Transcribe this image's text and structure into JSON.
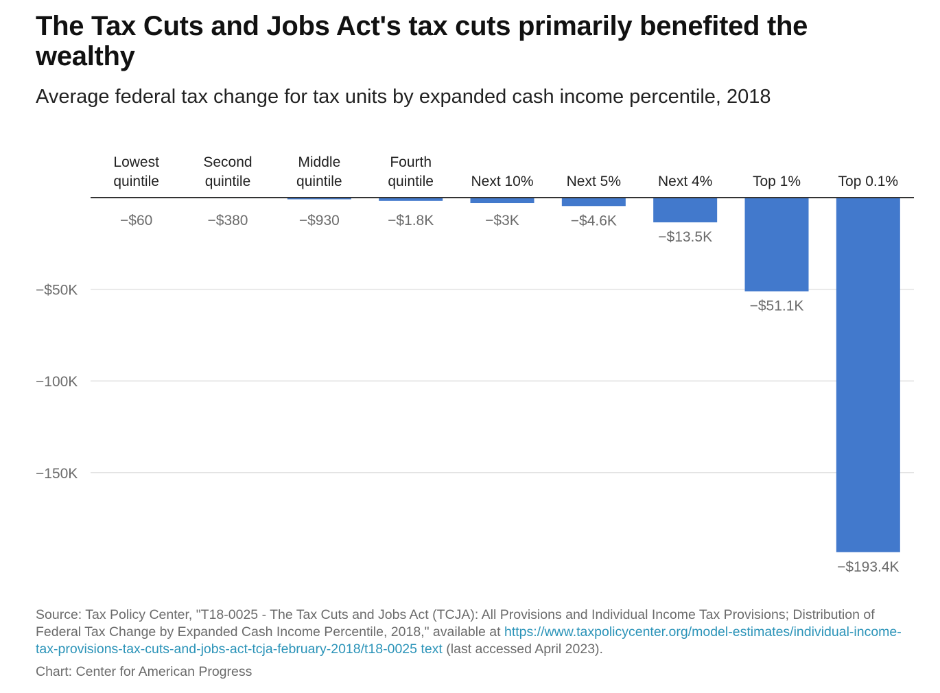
{
  "title": "The Tax Cuts and Jobs Act's tax cuts primarily benefited the wealthy",
  "subtitle": "Average federal tax change for tax units by expanded cash income percentile, 2018",
  "source": {
    "prefix": "Source: Tax Policy Center, \"T18-0025 - The Tax Cuts and Jobs Act (TCJA): All Provisions and Individual Income Tax Provisions; Distribution of Federal Tax Change by Expanded Cash Income Percentile, 2018,\" available at ",
    "link": "https://www.taxpolicycenter.org/model-estimates/individual-income-tax-provisions-tax-cuts-and-jobs-act-tcja-february-2018/t18-0025 text",
    "suffix": " (last accessed April 2023)."
  },
  "credit": "Chart: Center for American Progress",
  "colors": {
    "bar": "#4279cc",
    "grid": "#e2e2e2",
    "axis": "#333333"
  },
  "chart_data": {
    "type": "bar",
    "title": "The Tax Cuts and Jobs Act's tax cuts primarily benefited the wealthy",
    "subtitle": "Average federal tax change for tax units by expanded cash income percentile, 2018",
    "xlabel": "",
    "ylabel": "",
    "categories": [
      [
        "Lowest",
        "quintile"
      ],
      [
        "Second",
        "quintile"
      ],
      [
        "Middle",
        "quintile"
      ],
      [
        "Fourth",
        "quintile"
      ],
      [
        "Next 10%"
      ],
      [
        "Next 5%"
      ],
      [
        "Next 4%"
      ],
      [
        "Top 1%"
      ],
      [
        "Top 0.1%"
      ]
    ],
    "values": [
      -60,
      -380,
      -930,
      -1800,
      -3000,
      -4600,
      -13500,
      -51100,
      -193400
    ],
    "value_labels": [
      "−$60",
      "−$380",
      "−$930",
      "−$1.8K",
      "−$3K",
      "−$4.6K",
      "−$13.5K",
      "−$51.1K",
      "−$193.4K"
    ],
    "ylim": [
      -200000,
      0
    ],
    "yticks": [
      -50000,
      -100000,
      -150000
    ],
    "ytick_labels": [
      "−$50K",
      "−100K",
      "−150K"
    ],
    "grid": true,
    "legend": "none"
  }
}
